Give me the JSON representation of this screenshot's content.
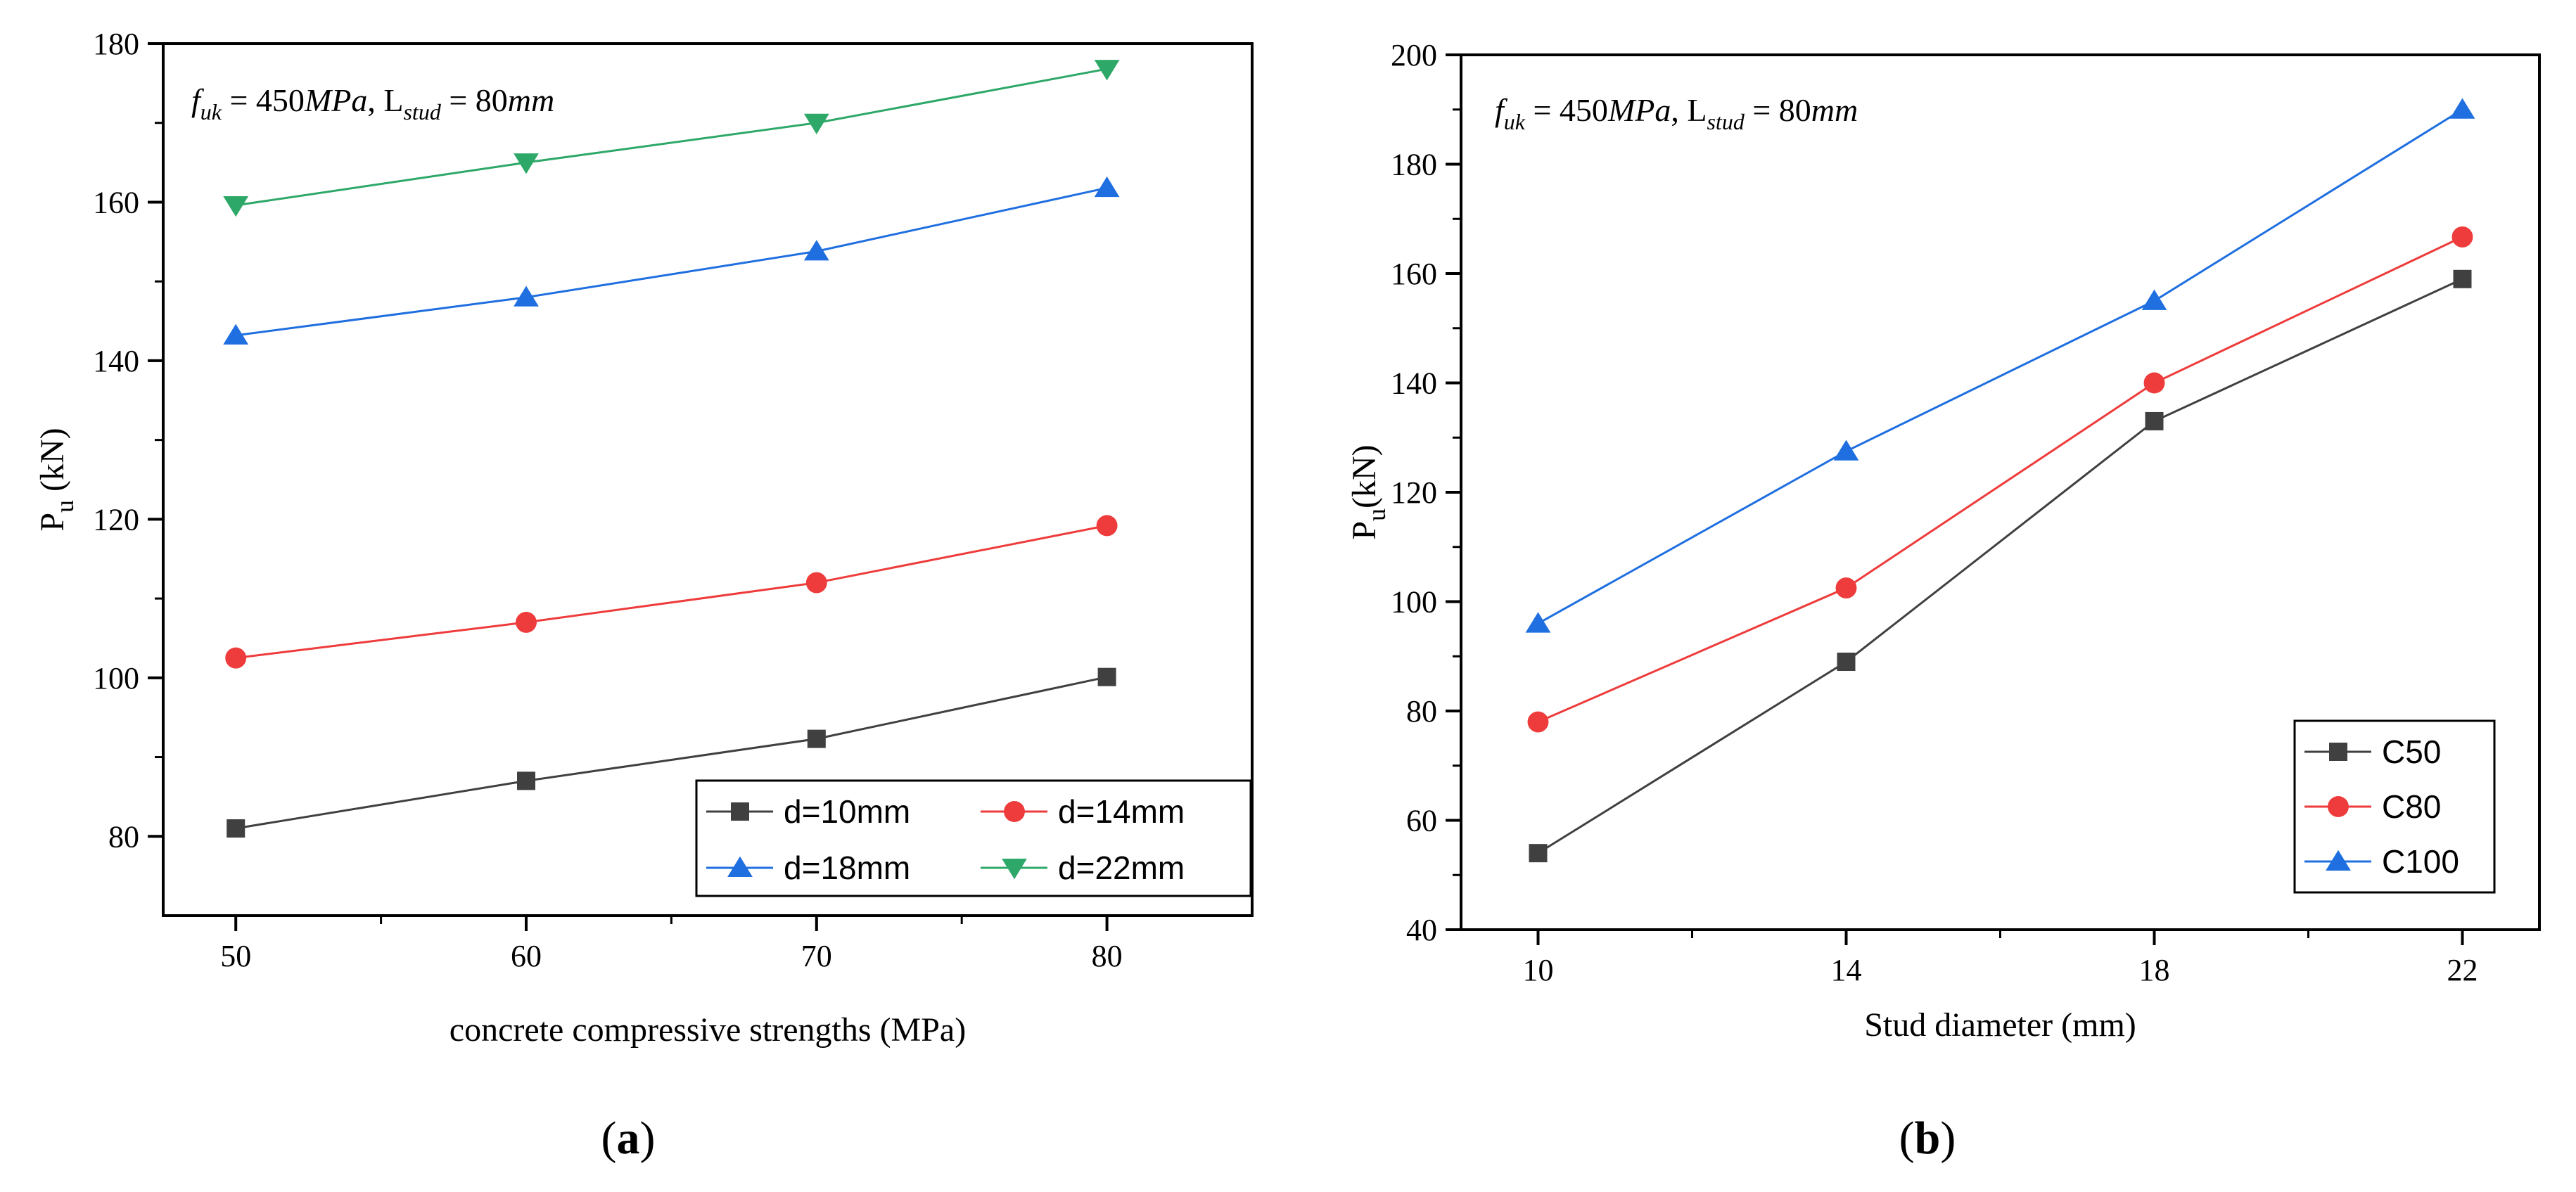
{
  "colors": {
    "black_series": "#404040",
    "red_series": "#ee3b3b",
    "blue_series": "#1f6fe0",
    "green_series": "#2ea868"
  },
  "chart_data": [
    {
      "type": "line",
      "panel_label": "a",
      "xlabel": "concrete compressive strengths (MPa)",
      "ylabel": "P",
      "ylabel_sub": "u",
      "ylabel_unit": " (kN)",
      "annotation": "f_uk = 450MPa, L_stud = 80mm",
      "x": [
        50,
        60,
        70,
        80
      ],
      "xlim": [
        47.5,
        85
      ],
      "ylim": [
        70,
        180
      ],
      "xticks": [
        50,
        60,
        70,
        80
      ],
      "yticks": [
        80,
        100,
        120,
        140,
        160,
        180
      ],
      "legend_position": "bottom-right",
      "series": [
        {
          "name": "d=10mm",
          "marker": "square",
          "color": "#404040",
          "values": [
            81,
            87,
            92.3,
            100.1
          ]
        },
        {
          "name": "d=14mm",
          "marker": "circle",
          "color": "#ee3b3b",
          "values": [
            102.5,
            107,
            112,
            119.2
          ]
        },
        {
          "name": "d=18mm",
          "marker": "triangle-up",
          "color": "#1f6fe0",
          "values": [
            143.2,
            148,
            153.8,
            161.8
          ]
        },
        {
          "name": "d=22mm",
          "marker": "triangle-down",
          "color": "#2ea868",
          "values": [
            159.6,
            165,
            170,
            176.8
          ]
        }
      ]
    },
    {
      "type": "line",
      "panel_label": "b",
      "xlabel": "Stud diameter (mm)",
      "ylabel": "P",
      "ylabel_sub": "u",
      "ylabel_unit": "(kN)",
      "annotation": "f_uk = 450MPa, L_stud = 80mm",
      "x": [
        10,
        14,
        18,
        22
      ],
      "xlim": [
        9,
        23
      ],
      "ylim": [
        40,
        200
      ],
      "xticks": [
        10,
        14,
        18,
        22
      ],
      "yticks": [
        40,
        60,
        80,
        100,
        120,
        140,
        160,
        180,
        200
      ],
      "legend_position": "bottom-right",
      "series": [
        {
          "name": "C50",
          "marker": "square",
          "color": "#404040",
          "values": [
            54,
            89,
            133,
            159
          ]
        },
        {
          "name": "C80",
          "marker": "circle",
          "color": "#ee3b3b",
          "values": [
            78,
            102.5,
            140,
            166.7
          ]
        },
        {
          "name": "C100",
          "marker": "triangle-up",
          "color": "#1f6fe0",
          "values": [
            96,
            127.5,
            155,
            190
          ]
        }
      ]
    }
  ]
}
